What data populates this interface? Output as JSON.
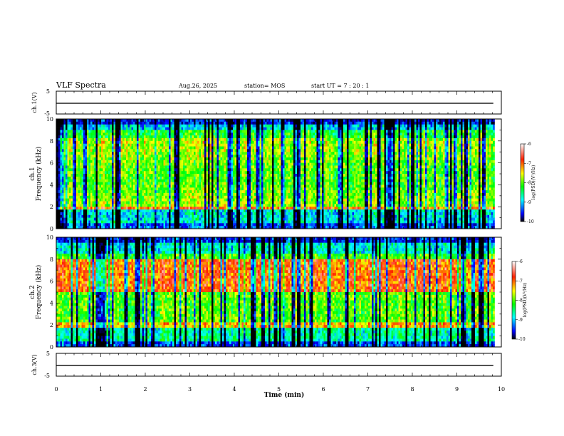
{
  "header": {
    "title": "VLF Spectra",
    "date": "Aug.26, 2025",
    "station": "station= MOS",
    "start": "start  UT  =   7 : 20 : 1"
  },
  "chart_data": [
    {
      "type": "line",
      "name": "ch1-waveform",
      "ylabel": "ch.1(V)",
      "ylim": [
        -5,
        5
      ],
      "yticks": [
        "5",
        "-5"
      ],
      "xlim": [
        0,
        10
      ],
      "series": [
        {
          "name": "ch.1",
          "x": [
            0,
            9.82
          ],
          "values": [
            -0.3,
            -0.3
          ]
        }
      ]
    },
    {
      "type": "heatmap",
      "name": "ch1-spectrogram",
      "ylabel_line1": "ch.1",
      "ylabel_line2": "Frequency (kHz)",
      "ylim": [
        0,
        10
      ],
      "yticks": [
        "0",
        "2",
        "4",
        "6",
        "8",
        "10"
      ],
      "xlim": [
        0,
        10
      ],
      "data_end_min": 9.82,
      "colorbar": {
        "label": "log(PSD)(V²/Hz)",
        "range": [
          -10,
          -6
        ],
        "ticks": [
          "-6",
          "-7",
          "-8",
          "-9",
          "-10"
        ]
      }
    },
    {
      "type": "heatmap",
      "name": "ch2-spectrogram",
      "ylabel_line1": "ch.2",
      "ylabel_line2": "Frequency (kHz)",
      "ylim": [
        0,
        10
      ],
      "yticks": [
        "0",
        "2",
        "4",
        "6",
        "8",
        "10"
      ],
      "xlim": [
        0,
        10
      ],
      "data_end_min": 9.82,
      "colorbar": {
        "label": "log(PSD)(V²/Hz)",
        "range": [
          -10,
          -6
        ],
        "ticks": [
          "-6",
          "-7",
          "-8",
          "-9",
          "-10"
        ]
      }
    },
    {
      "type": "line",
      "name": "ch3-waveform",
      "ylabel": "ch.3(V)",
      "ylim": [
        -5,
        5
      ],
      "yticks": [
        "5",
        "-5"
      ],
      "xlim": [
        0,
        10
      ],
      "series": [
        {
          "name": "ch.3",
          "x": [
            0,
            9.82
          ],
          "values": [
            -0.3,
            -0.3
          ]
        }
      ]
    }
  ],
  "xaxis": {
    "label": "Time  (min)",
    "ticks": [
      "0",
      "1",
      "2",
      "3",
      "4",
      "5",
      "6",
      "7",
      "8",
      "9",
      "10"
    ]
  }
}
